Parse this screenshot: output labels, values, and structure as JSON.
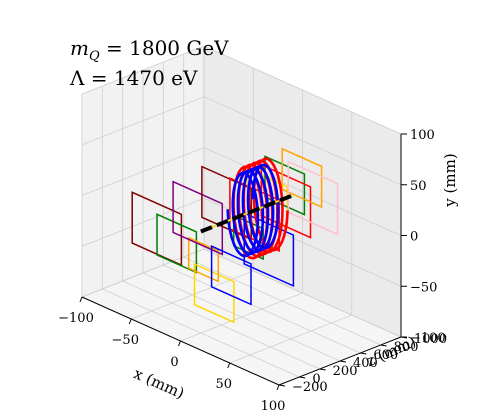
{
  "chart_data": {
    "type": "line3d",
    "annotations": [
      {
        "label": "m_Q = 1800 GeV",
        "text_prefix": "m",
        "text_sub": "Q",
        "text_rest": " = 1800 GeV"
      },
      {
        "label": "Λ = 1470 eV",
        "text": "Λ = 1470 eV"
      }
    ],
    "axes": {
      "x": {
        "label": "x (mm)",
        "range": [
          -100,
          100
        ],
        "ticks": [
          -100,
          -50,
          0,
          50,
          100
        ],
        "tick_labels": [
          "−100",
          "−50",
          "0",
          "50",
          "100"
        ]
      },
      "y": {
        "label": "y (mm)",
        "range": [
          -100,
          100
        ],
        "ticks": [
          -100,
          -50,
          0,
          50,
          100
        ],
        "tick_labels": [
          "−100",
          "−50",
          "0",
          "50",
          "100"
        ]
      },
      "z": {
        "label": "z (mm)",
        "range": [
          -200,
          1000
        ],
        "ticks": [
          -200,
          0,
          200,
          400,
          600,
          800,
          1000
        ],
        "tick_labels": [
          "−200",
          "0",
          "200",
          "400",
          "600",
          "800",
          "1000"
        ]
      }
    },
    "grid": true,
    "beamline": {
      "color": "#000000",
      "style": "dashed",
      "z_range": [
        0,
        900
      ]
    },
    "helices": [
      {
        "color": "#ff0000",
        "radius": 45,
        "turns": 5,
        "z_range": [
          450,
          700
        ],
        "phase": 0.0
      },
      {
        "color": "#0000ff",
        "radius": 40,
        "turns": 5,
        "z_range": [
          400,
          650
        ],
        "phase": 3.14159
      }
    ],
    "squares": [
      {
        "color": "#800000",
        "z": 100,
        "half_size": 25,
        "center_x": -55,
        "center_y": -25
      },
      {
        "color": "#008000",
        "z": 150,
        "half_size": 20,
        "center_x": -40,
        "center_y": -35
      },
      {
        "color": "#ffd700",
        "z": 180,
        "half_size": 20,
        "center_x": -5,
        "center_y": -70
      },
      {
        "color": "#ffa500",
        "z": 220,
        "half_size": 15,
        "center_x": -20,
        "center_y": -45
      },
      {
        "color": "#800080",
        "z": 260,
        "half_size": 25,
        "center_x": -30,
        "center_y": -10
      },
      {
        "color": "#0000ff",
        "z": 300,
        "half_size": 20,
        "center_x": 0,
        "center_y": -55
      },
      {
        "color": "#800000",
        "z": 350,
        "half_size": 25,
        "center_x": -10,
        "center_y": 10
      },
      {
        "color": "#008000",
        "z": 420,
        "half_size": 15,
        "center_x": 5,
        "center_y": -20
      },
      {
        "color": "#ff0000",
        "z": 480,
        "half_size": 25,
        "center_x": 5,
        "center_y": 0
      },
      {
        "color": "#ffd700",
        "z": 560,
        "half_size": 20,
        "center_x": 10,
        "center_y": 15
      },
      {
        "color": "#0000ff",
        "z": 620,
        "half_size": 25,
        "center_x": 5,
        "center_y": -40
      },
      {
        "color": "#008000",
        "z": 680,
        "half_size": 20,
        "center_x": 15,
        "center_y": 25
      },
      {
        "color": "#ff0000",
        "z": 740,
        "half_size": 25,
        "center_x": 10,
        "center_y": 5
      },
      {
        "color": "#ffa500",
        "z": 800,
        "half_size": 20,
        "center_x": 20,
        "center_y": 30
      },
      {
        "color": "#ffc0cb",
        "z": 860,
        "half_size": 25,
        "center_x": 25,
        "center_y": 10
      }
    ]
  }
}
